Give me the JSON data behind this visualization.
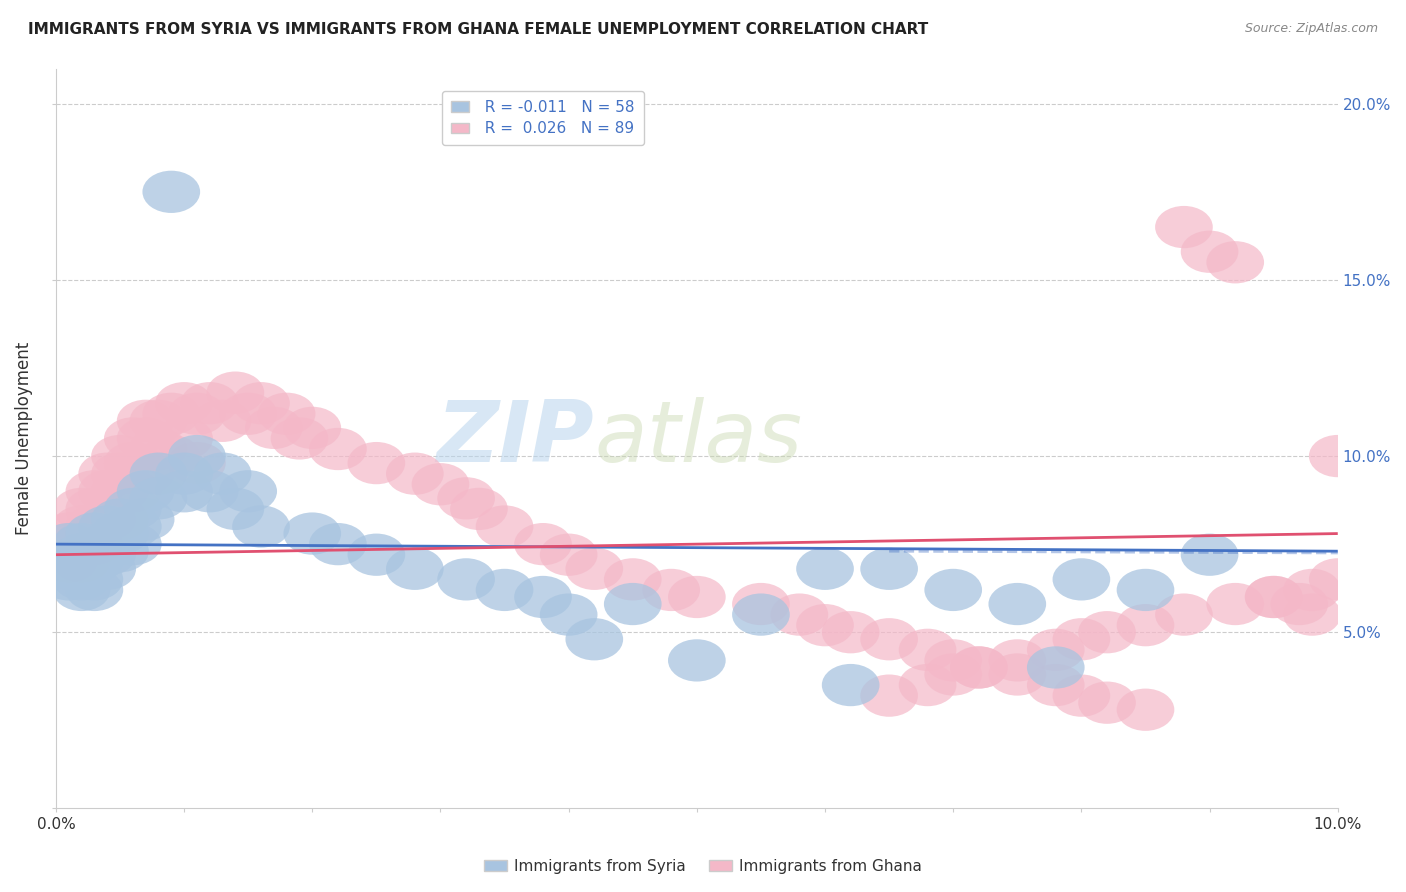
{
  "title": "IMMIGRANTS FROM SYRIA VS IMMIGRANTS FROM GHANA FEMALE UNEMPLOYMENT CORRELATION CHART",
  "source": "Source: ZipAtlas.com",
  "ylabel": "Female Unemployment",
  "xlim": [
    0.0,
    0.1
  ],
  "ylim": [
    0.0,
    0.21
  ],
  "color_syria": "#a8c4e0",
  "color_ghana": "#f4b8c8",
  "trendline_syria": "#4472c4",
  "trendline_ghana": "#e05070",
  "watermark_zip": "ZIP",
  "watermark_atlas": "atlas",
  "syria_x": [
    0.001,
    0.001,
    0.001,
    0.001,
    0.002,
    0.002,
    0.002,
    0.002,
    0.002,
    0.003,
    0.003,
    0.003,
    0.003,
    0.003,
    0.004,
    0.004,
    0.004,
    0.004,
    0.005,
    0.005,
    0.005,
    0.006,
    0.006,
    0.006,
    0.007,
    0.007,
    0.008,
    0.008,
    0.009,
    0.01,
    0.01,
    0.011,
    0.012,
    0.013,
    0.014,
    0.015,
    0.016,
    0.02,
    0.022,
    0.025,
    0.028,
    0.032,
    0.035,
    0.038,
    0.04,
    0.042,
    0.045,
    0.05,
    0.055,
    0.06,
    0.062,
    0.065,
    0.07,
    0.075,
    0.078,
    0.08,
    0.085,
    0.09
  ],
  "syria_y": [
    0.075,
    0.07,
    0.068,
    0.065,
    0.075,
    0.072,
    0.068,
    0.065,
    0.062,
    0.078,
    0.073,
    0.07,
    0.065,
    0.062,
    0.08,
    0.075,
    0.072,
    0.068,
    0.082,
    0.078,
    0.073,
    0.085,
    0.08,
    0.075,
    0.09,
    0.082,
    0.095,
    0.088,
    0.175,
    0.095,
    0.09,
    0.1,
    0.09,
    0.095,
    0.085,
    0.09,
    0.08,
    0.078,
    0.075,
    0.072,
    0.068,
    0.065,
    0.062,
    0.06,
    0.055,
    0.048,
    0.058,
    0.042,
    0.055,
    0.068,
    0.035,
    0.068,
    0.062,
    0.058,
    0.04,
    0.065,
    0.062,
    0.072
  ],
  "ghana_x": [
    0.001,
    0.001,
    0.001,
    0.002,
    0.002,
    0.002,
    0.002,
    0.003,
    0.003,
    0.003,
    0.003,
    0.004,
    0.004,
    0.004,
    0.005,
    0.005,
    0.005,
    0.005,
    0.006,
    0.006,
    0.006,
    0.007,
    0.007,
    0.007,
    0.008,
    0.008,
    0.008,
    0.009,
    0.009,
    0.01,
    0.01,
    0.011,
    0.011,
    0.012,
    0.013,
    0.014,
    0.015,
    0.016,
    0.017,
    0.018,
    0.019,
    0.02,
    0.022,
    0.025,
    0.028,
    0.03,
    0.032,
    0.033,
    0.035,
    0.038,
    0.04,
    0.042,
    0.045,
    0.048,
    0.05,
    0.055,
    0.058,
    0.06,
    0.062,
    0.065,
    0.068,
    0.07,
    0.072,
    0.075,
    0.078,
    0.08,
    0.082,
    0.085,
    0.088,
    0.09,
    0.092,
    0.095,
    0.097,
    0.098,
    0.1,
    0.1,
    0.098,
    0.095,
    0.092,
    0.088,
    0.085,
    0.082,
    0.08,
    0.078,
    0.075,
    0.072,
    0.07,
    0.068,
    0.065
  ],
  "ghana_y": [
    0.078,
    0.075,
    0.07,
    0.085,
    0.08,
    0.075,
    0.07,
    0.09,
    0.085,
    0.08,
    0.075,
    0.095,
    0.09,
    0.082,
    0.1,
    0.095,
    0.09,
    0.082,
    0.105,
    0.098,
    0.09,
    0.11,
    0.105,
    0.095,
    0.11,
    0.102,
    0.095,
    0.112,
    0.1,
    0.115,
    0.105,
    0.112,
    0.098,
    0.115,
    0.11,
    0.118,
    0.112,
    0.115,
    0.108,
    0.112,
    0.105,
    0.108,
    0.102,
    0.098,
    0.095,
    0.092,
    0.088,
    0.085,
    0.08,
    0.075,
    0.072,
    0.068,
    0.065,
    0.062,
    0.06,
    0.058,
    0.055,
    0.052,
    0.05,
    0.048,
    0.045,
    0.042,
    0.04,
    0.038,
    0.035,
    0.032,
    0.03,
    0.028,
    0.165,
    0.158,
    0.155,
    0.06,
    0.058,
    0.055,
    0.1,
    0.065,
    0.062,
    0.06,
    0.058,
    0.055,
    0.052,
    0.05,
    0.048,
    0.045,
    0.042,
    0.04,
    0.038,
    0.035,
    0.032
  ]
}
